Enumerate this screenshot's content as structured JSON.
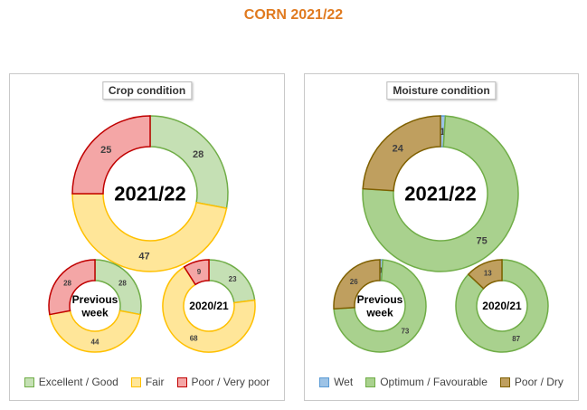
{
  "title": "CORN 2021/22",
  "colors": {
    "excellent_good": {
      "fill": "#C5E0B4",
      "stroke": "#70AD47"
    },
    "fair": {
      "fill": "#FFE699",
      "stroke": "#FFC000"
    },
    "poor_very_poor": {
      "fill": "#F4A6A6",
      "stroke": "#C00000"
    },
    "wet": {
      "fill": "#9DC3E6",
      "stroke": "#5B9BD5"
    },
    "optimum_favourable": {
      "fill": "#A9D18E",
      "stroke": "#70AD47"
    },
    "poor_dry": {
      "fill": "#BF9F5F",
      "stroke": "#7F6000"
    }
  },
  "chart_data": [
    {
      "type": "pie",
      "title": "Crop condition",
      "legend": [
        "Excellent / Good",
        "Fair",
        "Poor / Very poor"
      ],
      "legend_placement": "bottom",
      "donuts": [
        {
          "center_label": "2021/22",
          "values": [
            28,
            47,
            25
          ]
        },
        {
          "center_label": "Previous week",
          "values": [
            28,
            44,
            28
          ]
        },
        {
          "center_label": "2020/21",
          "values": [
            23,
            68,
            9
          ]
        }
      ]
    },
    {
      "type": "pie",
      "title": "Moisture condition",
      "legend": [
        "Wet",
        "Optimum / Favourable",
        "Poor / Dry"
      ],
      "legend_placement": "bottom",
      "donuts": [
        {
          "center_label": "2021/22",
          "values": [
            1,
            75,
            24
          ]
        },
        {
          "center_label": "Previous week",
          "values": [
            1,
            73,
            26
          ]
        },
        {
          "center_label": "2020/21",
          "values": [
            0,
            87,
            13
          ]
        }
      ]
    }
  ]
}
